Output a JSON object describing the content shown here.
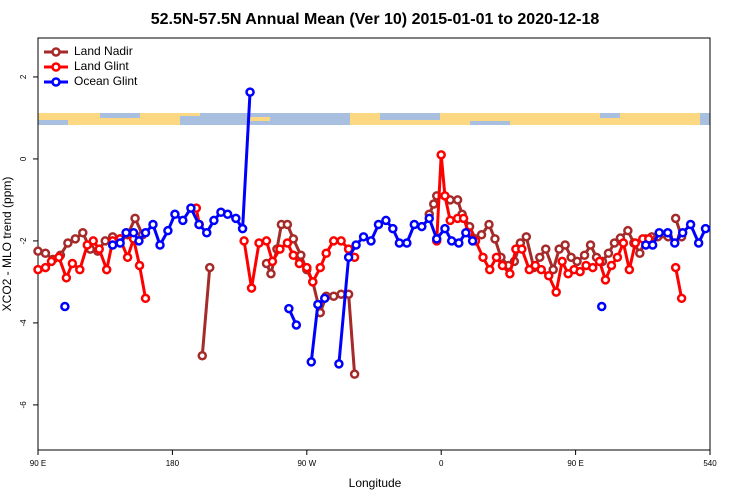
{
  "chart_data": {
    "type": "line",
    "title": "52.5N-57.5N Annual Mean (Ver 10)   2015-01-01 to 2020-12-18",
    "x_label": "Longitude",
    "y_label": "XCO2 - MLO trend (ppm)",
    "xlim": [
      90,
      540
    ],
    "ylim": [
      -7.1,
      2.95
    ],
    "xticks": [
      {
        "value": 90,
        "label": "90 E"
      },
      180,
      {
        "value": 270,
        "label": "90 W"
      },
      {
        "value": 360,
        "label": "0"
      },
      {
        "value": 450,
        "label": "90 E"
      },
      540
    ],
    "yticks": [
      -6,
      -4,
      -2,
      0,
      2
    ],
    "legend": "top-left",
    "series": [
      {
        "name": "Land Nadir",
        "color": "#a52a2a",
        "x": [
          90,
          95,
          100,
          105,
          110,
          115,
          120,
          125,
          130,
          135,
          140,
          145,
          150,
          155,
          160,
          null,
          200,
          205,
          null,
          243,
          246,
          250,
          253,
          257,
          261,
          266,
          270,
          274,
          279,
          283,
          288,
          293,
          298,
          302,
          null,
          352,
          355,
          357,
          366,
          371,
          374,
          379,
          383,
          387,
          392,
          396,
          400,
          405,
          409,
          413,
          417,
          422,
          426,
          430,
          435,
          439,
          443,
          447,
          451,
          456,
          460,
          464,
          468,
          472,
          476,
          480,
          485,
          489,
          493,
          497,
          501,
          505,
          512,
          null,
          517,
          521
        ],
        "values": [
          -2.25,
          -2.3,
          -2.45,
          -2.35,
          -2.05,
          -1.95,
          -1.8,
          -2.2,
          -2.25,
          -2.0,
          -1.9,
          -1.95,
          -1.85,
          -1.45,
          -1.85,
          null,
          -4.8,
          -2.65,
          null,
          -2.55,
          -2.8,
          -2.2,
          -1.6,
          -1.6,
          -1.95,
          -2.35,
          -2.7,
          -3.0,
          -3.75,
          -3.35,
          -3.35,
          -3.3,
          -3.3,
          -5.25,
          null,
          -1.35,
          -1.1,
          -0.9,
          -1.0,
          -1.0,
          -1.35,
          -1.65,
          -1.95,
          -1.85,
          -1.6,
          -1.95,
          -2.4,
          -2.6,
          -2.5,
          -2.05,
          -1.9,
          -2.65,
          -2.4,
          -2.2,
          -2.7,
          -2.2,
          -2.1,
          -2.4,
          -2.5,
          -2.35,
          -2.1,
          -2.4,
          -2.5,
          -2.3,
          -2.05,
          -1.93,
          -1.75,
          -2.05,
          -2.3,
          -1.95,
          -1.9,
          -1.9,
          -1.9,
          null,
          -1.45,
          -1.9
        ]
      },
      {
        "name": "Land Glint",
        "color": "#ff0000",
        "x": [
          90,
          95,
          99,
          104,
          109,
          113,
          118,
          123,
          127,
          131,
          136,
          140,
          145,
          150,
          154,
          158,
          162,
          null,
          196,
          198,
          null,
          228,
          233,
          238,
          243,
          247,
          252,
          257,
          261,
          265,
          270,
          274,
          279,
          283,
          288,
          293,
          298,
          302,
          null,
          357,
          360,
          362.5,
          366,
          371,
          375,
          378.5,
          383,
          388,
          392.5,
          397,
          401,
          406,
          410,
          414,
          419,
          423,
          427,
          432,
          437,
          441,
          445,
          449,
          453,
          457,
          461.5,
          466,
          470,
          474,
          478,
          482,
          486,
          490,
          495,
          499,
          null,
          517,
          521
        ],
        "values": [
          -2.7,
          -2.65,
          -2.5,
          -2.4,
          -2.9,
          -2.55,
          -2.7,
          -2.1,
          -2.0,
          -2.2,
          -2.7,
          -2.0,
          -1.95,
          -2.4,
          -1.95,
          -2.6,
          -3.4,
          null,
          -1.2,
          -1.6,
          null,
          -2.0,
          -3.15,
          -2.05,
          -2.0,
          -2.5,
          -2.2,
          -2.05,
          -2.35,
          -2.55,
          -2.65,
          -3.0,
          -2.65,
          -2.3,
          -2.0,
          -2.0,
          -2.2,
          -2.4,
          null,
          -2.0,
          0.1,
          -0.9,
          -1.5,
          -1.45,
          -1.45,
          -1.8,
          -2.0,
          -2.4,
          -2.7,
          -2.4,
          -2.6,
          -2.8,
          -2.2,
          -2.2,
          -2.7,
          -2.6,
          -2.7,
          -2.85,
          -3.25,
          -2.5,
          -2.8,
          -2.7,
          -2.75,
          -2.6,
          -2.65,
          -2.5,
          -2.95,
          -2.6,
          -2.4,
          -2.05,
          -2.7,
          -2.05,
          -1.95,
          -1.95,
          null,
          -2.65,
          -3.4
        ]
      },
      {
        "name": "Ocean Glint",
        "color": "#0000ff",
        "x": [
          108,
          null,
          140,
          145,
          149,
          154,
          157.6,
          162,
          167,
          171.7,
          177,
          181.7,
          187,
          192.4,
          197.8,
          203,
          207.8,
          212.5,
          217,
          222.5,
          227,
          232,
          null,
          258,
          263,
          null,
          273,
          277.4,
          282,
          null,
          291.5,
          298,
          303,
          308,
          313,
          318,
          323,
          327.6,
          332,
          337,
          342,
          347,
          352,
          357,
          362.5,
          367,
          371.8,
          376.5,
          381,
          null,
          467.5,
          null,
          497,
          501.6,
          506,
          511.7,
          516.4,
          521.7,
          527,
          532.4,
          537
        ],
        "values": [
          -3.6,
          null,
          -2.1,
          -2.05,
          -1.8,
          -1.8,
          -2.0,
          -1.8,
          -1.6,
          -2.1,
          -1.75,
          -1.35,
          -1.5,
          -1.2,
          -1.6,
          -1.8,
          -1.5,
          -1.3,
          -1.35,
          -1.45,
          -1.7,
          1.63,
          null,
          -3.65,
          -4.05,
          null,
          -4.95,
          -3.55,
          -3.4,
          null,
          -5.0,
          -2.4,
          -2.1,
          -1.9,
          -2.0,
          -1.6,
          -1.5,
          -1.7,
          -2.05,
          -2.05,
          -1.6,
          -1.65,
          -1.45,
          -1.95,
          -1.7,
          -2.0,
          -2.05,
          -1.8,
          -2.0,
          null,
          -3.6,
          null,
          -2.1,
          -2.1,
          -1.8,
          -1.8,
          -2.05,
          -1.8,
          -1.6,
          -2.05,
          -1.7
        ]
      }
    ]
  }
}
